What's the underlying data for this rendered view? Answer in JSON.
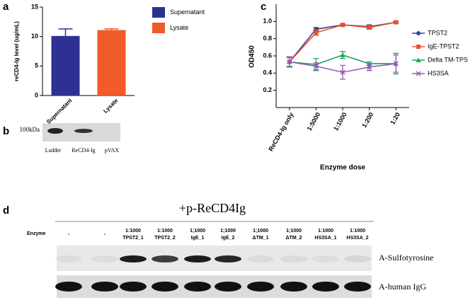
{
  "chart_data": [
    {
      "type": "bar",
      "panel": "a",
      "ylabel": "reCD4-Ig level (ug/mL)",
      "categories": [
        "Supernatant",
        "Lysate"
      ],
      "values": [
        10.1,
        11.1
      ],
      "errors": [
        1.2,
        0.2
      ],
      "colors": [
        "#2e3192",
        "#f15a29"
      ],
      "ylim": [
        0,
        15
      ],
      "yticks": [
        0,
        5,
        10,
        15
      ],
      "legend": "right"
    },
    {
      "type": "line",
      "panel": "c",
      "ylabel": "OD450",
      "xlabel": "Enzyme dose",
      "categories": [
        "ReCD4-Ig only",
        "1:5000",
        "1:1000",
        "1:200",
        "1:20"
      ],
      "series": [
        {
          "name": "TPST2",
          "color": "#3a3f8f",
          "marker": "circle",
          "values": [
            0.53,
            0.91,
            0.96,
            0.94,
            0.99
          ],
          "errors": [
            0.06,
            0.02,
            0.01,
            0.02,
            0.01
          ]
        },
        {
          "name": "IgE-TPST2",
          "color": "#e8502a",
          "marker": "square",
          "values": [
            0.53,
            0.87,
            0.96,
            0.93,
            0.99
          ],
          "errors": [
            0.05,
            0.03,
            0.01,
            0.02,
            0.01
          ]
        },
        {
          "name": "Delta TM-TPST2",
          "color": "#1aa35a",
          "marker": "triangle",
          "values": [
            0.53,
            0.5,
            0.61,
            0.51,
            0.51
          ],
          "errors": [
            0.05,
            0.07,
            0.04,
            0.02,
            0.12
          ]
        },
        {
          "name": "HS3SA",
          "color": "#9b59b6",
          "marker": "cross",
          "values": [
            0.53,
            0.48,
            0.41,
            0.47,
            0.51
          ],
          "errors": [
            0.06,
            0.04,
            0.08,
            0.04,
            0.1
          ]
        }
      ],
      "ylim": [
        0,
        1.2
      ],
      "yticks": [
        0.2,
        0.4,
        0.6,
        0.8,
        {
          "value": 1,
          "label": "1.0"
        }
      ],
      "legend": "right"
    }
  ],
  "blot_b": {
    "panel": "b",
    "marker": "100kDa",
    "lanes": [
      "Ladder",
      "ReCD4-Ig",
      "pVAX"
    ]
  },
  "blot_d": {
    "panel": "d",
    "title": "+p-ReCD4Ig",
    "row_label": "Enzyme",
    "lanes": [
      {
        "dose": "-"
      },
      {
        "dose": "-"
      },
      {
        "dose": "1:1000",
        "name": "TPST2_1"
      },
      {
        "dose": "1:1000",
        "name": "TPST2_2"
      },
      {
        "dose": "1;1000",
        "name": "IgE_1"
      },
      {
        "dose": "1;1000",
        "name": "IgE_2"
      },
      {
        "dose": "1;1000",
        "name": "ΔTM_1"
      },
      {
        "dose": "1;1000",
        "name": "ΔTM_2"
      },
      {
        "dose": "1:1000",
        "name": "HS3SA_1"
      },
      {
        "dose": "1:1000",
        "name": "HS3SA_2"
      }
    ],
    "blots": [
      "A-Sulfotyrosine",
      "A-human IgG"
    ]
  }
}
